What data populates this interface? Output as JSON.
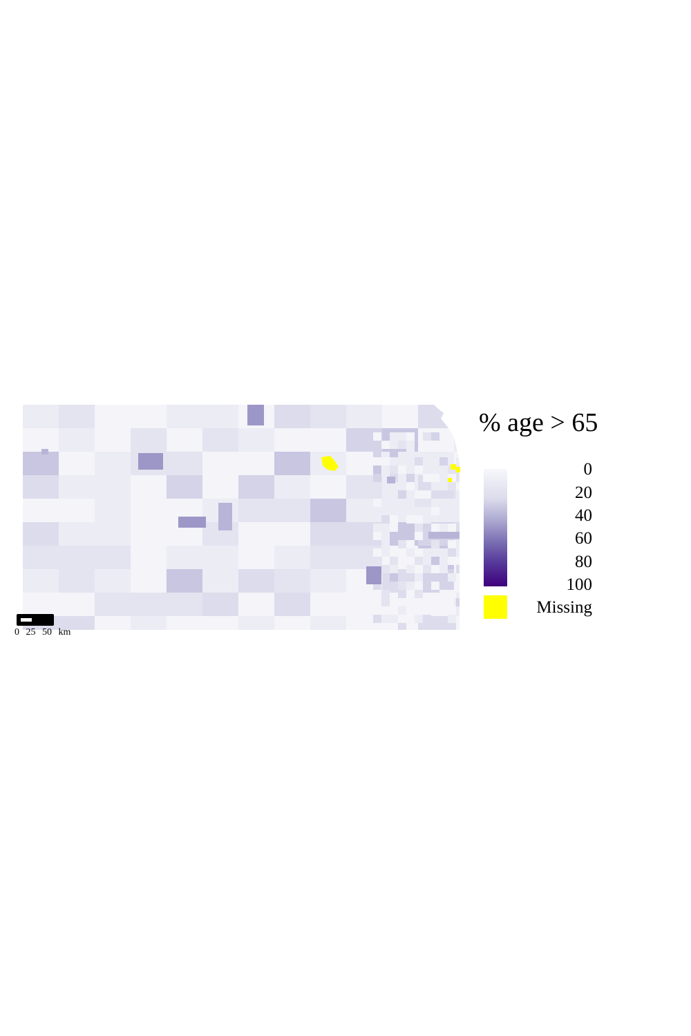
{
  "legend": {
    "title": "% age > 65",
    "ticks": [
      "0",
      "20",
      "40",
      "60",
      "80",
      "100"
    ],
    "missing_label": "Missing",
    "color_low": "#f7f7fb",
    "color_high": "#3f007d",
    "color_missing": "#ffff00"
  },
  "scale_bar": {
    "labels": [
      "0",
      "25",
      "50",
      "km"
    ]
  },
  "map": {
    "region": "Kansas",
    "variable": "% age > 65",
    "base_fill": "#e6e6f2",
    "palette": [
      "#f4f4f9",
      "#ececf5",
      "#e4e4f0",
      "#dcdcec",
      "#d4d3e8",
      "#c8c6e1",
      "#b7b4d7",
      "#9c97c7",
      "#7f78b6"
    ]
  }
}
